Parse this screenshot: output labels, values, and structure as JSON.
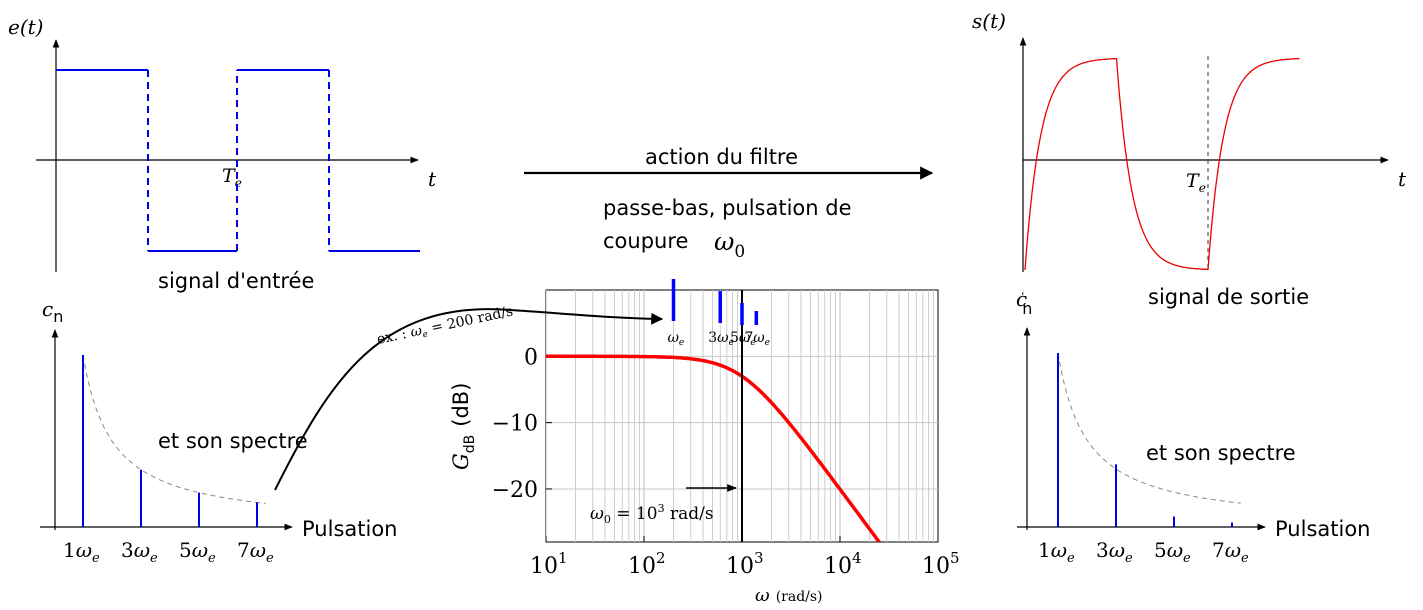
{
  "input_signal": {
    "ylabel": "e(t)",
    "xlabel": "t",
    "period_label": "T",
    "period_sub": "e",
    "caption": "signal d'entrée"
  },
  "output_signal": {
    "ylabel": "s(t)",
    "xlabel": "t",
    "period_label": "T",
    "period_sub": "e",
    "caption": "signal de sortie"
  },
  "filter": {
    "action_label": "action du filtre",
    "description_line1": "passe-bas, pulsation de",
    "description_line2": "coupure",
    "cutoff_symbol": "ω",
    "cutoff_sub": "0"
  },
  "input_spectrum": {
    "ylabel": "c",
    "ylabel_sub": "n",
    "caption": "et son spectre",
    "xlabel": "Pulsation",
    "harmonics": [
      {
        "coef": "1",
        "label": "ω",
        "sub": "e",
        "amplitude": 1.0
      },
      {
        "coef": "3",
        "label": "ω",
        "sub": "e",
        "amplitude": 0.333
      },
      {
        "coef": "5",
        "label": "ω",
        "sub": "e",
        "amplitude": 0.2
      },
      {
        "coef": "7",
        "label": "ω",
        "sub": "e",
        "amplitude": 0.143
      }
    ]
  },
  "output_spectrum": {
    "ylabel": "c",
    "ylabel_prime": "'",
    "ylabel_sub": "n",
    "caption": "et son spectre",
    "xlabel": "Pulsation",
    "harmonics": [
      {
        "coef": "1",
        "label": "ω",
        "sub": "e",
        "amplitude": 1.0
      },
      {
        "coef": "3",
        "label": "ω",
        "sub": "e",
        "amplitude": 0.36
      },
      {
        "coef": "5",
        "label": "ω",
        "sub": "e",
        "amplitude": 0.06
      },
      {
        "coef": "7",
        "label": "ω",
        "sub": "e",
        "amplitude": 0.025
      }
    ]
  },
  "example_annotation": "ex. : ωe = 200 rad/s",
  "bode": {
    "ylabel_main": "G",
    "ylabel_sub": "dB",
    "ylabel_unit": "(dB)",
    "xlabel": "ω",
    "xlabel_unit": "(rad/s)",
    "cutoff_annotation": "ω0 = 10³ rad/s",
    "harmonic_labels": [
      "ωe",
      "3ωe",
      "5ωe",
      "7ωe"
    ],
    "colors": {
      "curve": "#ff0000",
      "harmonics": "#0000ff"
    },
    "chart_data": {
      "type": "line",
      "xscale": "log",
      "xlim": [
        10,
        100000
      ],
      "ylim": [
        -28,
        10
      ],
      "x_ticks": [
        "10¹",
        "10²",
        "10³",
        "10⁴",
        "10⁵"
      ],
      "y_ticks": [
        "0",
        "−10",
        "−20"
      ],
      "cutoff": 1000,
      "curve": "first-order low-pass, G = -10·log10(1 + (ω/ω0)²)",
      "harmonic_frequencies": [
        200,
        600,
        1000,
        1400
      ]
    }
  }
}
